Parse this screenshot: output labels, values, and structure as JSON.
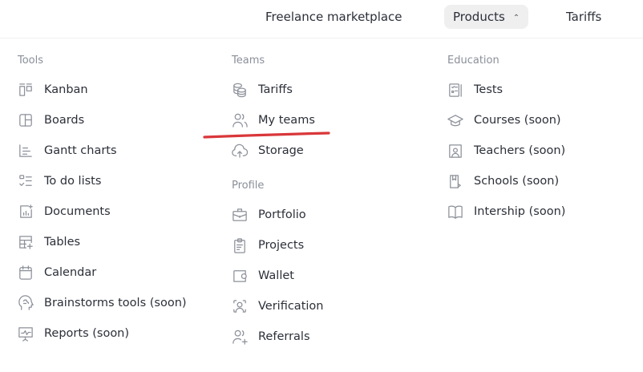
{
  "topnav": {
    "items": [
      {
        "label": "Freelance marketplace"
      },
      {
        "label": "Products",
        "expanded": true
      },
      {
        "label": "Tariffs"
      }
    ]
  },
  "columns": [
    {
      "sections": [
        {
          "title": "Tools",
          "items": [
            {
              "label": "Kanban",
              "icon": "kanban-icon"
            },
            {
              "label": "Boards",
              "icon": "boards-icon"
            },
            {
              "label": "Gantt charts",
              "icon": "gantt-icon"
            },
            {
              "label": "To do lists",
              "icon": "todo-list-icon"
            },
            {
              "label": "Documents",
              "icon": "documents-icon"
            },
            {
              "label": "Tables",
              "icon": "tables-icon"
            },
            {
              "label": "Calendar",
              "icon": "calendar-icon"
            },
            {
              "label": "Brainstorms tools (soon)",
              "icon": "brain-icon"
            },
            {
              "label": "Reports (soon)",
              "icon": "reports-icon"
            }
          ]
        }
      ]
    },
    {
      "sections": [
        {
          "title": "Teams",
          "items": [
            {
              "label": "Tariffs",
              "icon": "coins-icon"
            },
            {
              "label": "My teams",
              "icon": "users-icon"
            },
            {
              "label": "Storage",
              "icon": "cloud-upload-icon"
            }
          ]
        },
        {
          "title": "Profile",
          "items": [
            {
              "label": "Portfolio",
              "icon": "briefcase-icon"
            },
            {
              "label": "Projects",
              "icon": "clipboard-icon"
            },
            {
              "label": "Wallet",
              "icon": "wallet-icon"
            },
            {
              "label": "Verification",
              "icon": "user-scan-icon"
            },
            {
              "label": "Referrals",
              "icon": "user-plus-icon"
            }
          ]
        }
      ]
    },
    {
      "sections": [
        {
          "title": "Education",
          "items": [
            {
              "label": "Tests",
              "icon": "tests-icon"
            },
            {
              "label": "Courses (soon)",
              "icon": "graduation-cap-icon"
            },
            {
              "label": "Teachers (soon)",
              "icon": "teacher-icon"
            },
            {
              "label": "Schools (soon)",
              "icon": "school-icon"
            },
            {
              "label": "Intership (soon)",
              "icon": "book-open-icon"
            }
          ]
        }
      ]
    }
  ],
  "colors": {
    "accent_underline": "#d9373a",
    "text": "#2b2f38",
    "muted": "#8a8f99",
    "icon": "#8c9099",
    "active_nav_bg": "#efeff0"
  }
}
